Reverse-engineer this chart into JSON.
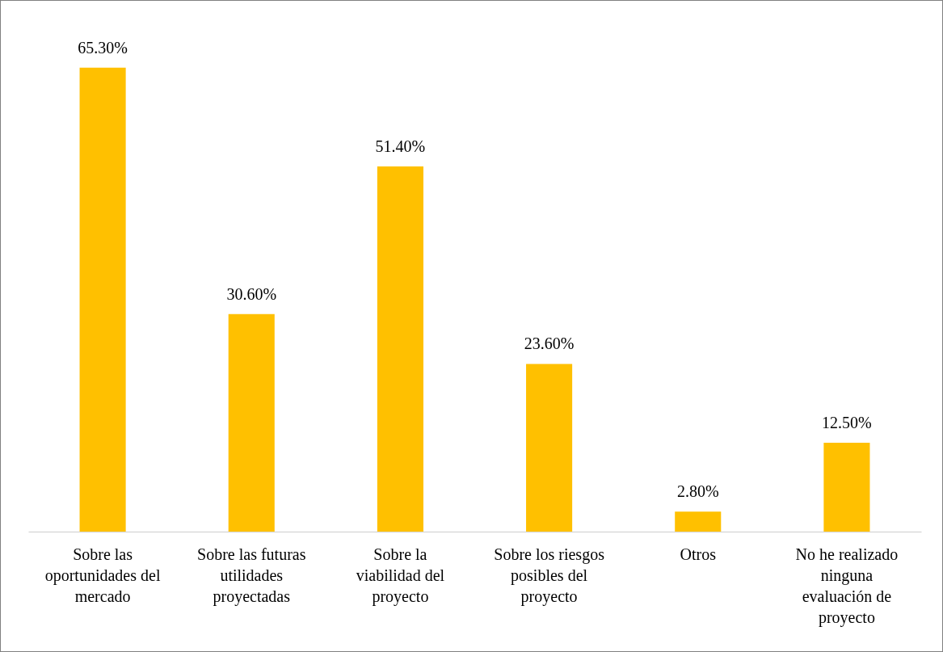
{
  "chart_data": {
    "type": "bar",
    "categories": [
      "Sobre las oportunidades del mercado",
      "Sobre las futuras utilidades proyectadas",
      "Sobre la viabilidad del proyecto",
      "Sobre los riesgos posibles del proyecto",
      "Otros",
      "No he realizado ninguna evaluación de proyecto"
    ],
    "values": [
      65.3,
      30.6,
      51.4,
      23.6,
      2.8,
      12.5
    ],
    "value_labels": [
      "65.30%",
      "30.60%",
      "51.40%",
      "23.60%",
      "2.80%",
      "12.50%"
    ],
    "color": "#ffc000",
    "grid": false
  }
}
